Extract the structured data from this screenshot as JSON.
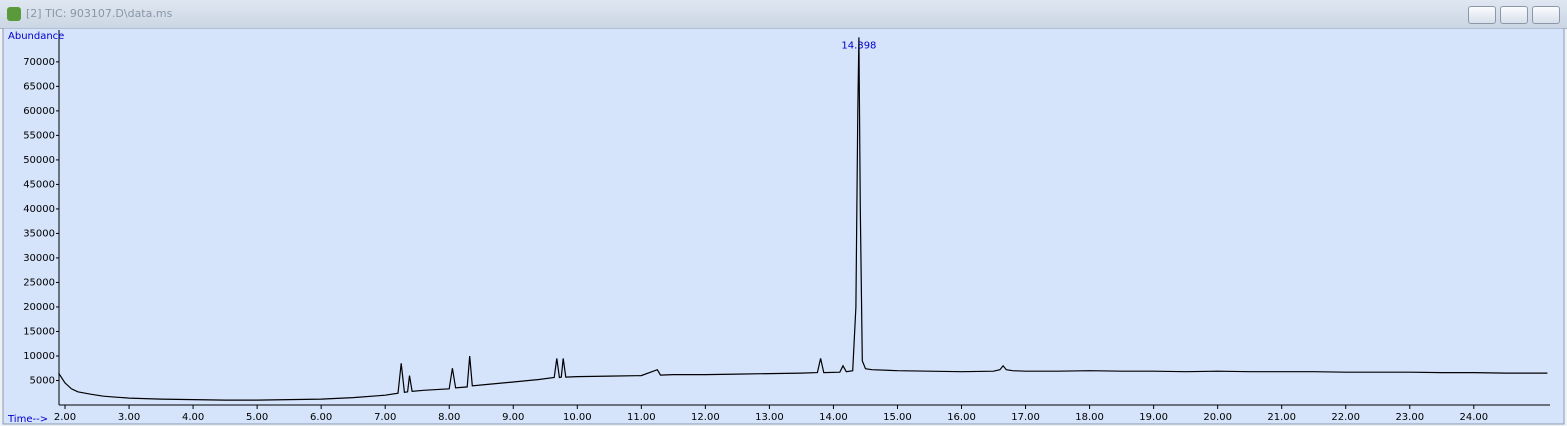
{
  "window": {
    "title": "[2] TIC: 903107.D\\data.ms"
  },
  "chart_data": {
    "type": "line",
    "y_label": "Abundance",
    "x_label": "Time-->",
    "annotation": "14.398",
    "annotation_index": 57,
    "color": "#000000",
    "x": [
      1.9,
      2.0,
      2.1,
      2.2,
      2.4,
      2.6,
      2.8,
      3.0,
      3.5,
      4.0,
      4.5,
      5.0,
      5.5,
      6.0,
      6.5,
      7.0,
      7.2,
      7.25,
      7.3,
      7.35,
      7.38,
      7.42,
      7.6,
      8.0,
      8.05,
      8.1,
      8.28,
      8.32,
      8.36,
      8.6,
      9.0,
      9.4,
      9.64,
      9.68,
      9.72,
      9.75,
      9.78,
      9.82,
      10.0,
      10.5,
      11.0,
      11.25,
      11.3,
      11.5,
      12.0,
      12.5,
      13.0,
      13.5,
      13.75,
      13.8,
      13.85,
      14.1,
      14.15,
      14.2,
      14.3,
      14.35,
      14.38,
      14.398,
      14.42,
      14.45,
      14.5,
      14.6,
      15.0,
      15.5,
      16.0,
      16.5,
      16.6,
      16.65,
      16.7,
      16.8,
      17.0,
      17.5,
      18.0,
      18.5,
      19.0,
      19.5,
      20.0,
      20.5,
      21.0,
      21.5,
      22.0,
      22.5,
      23.0,
      23.5,
      24.0,
      24.5,
      25.0,
      25.15
    ],
    "values": [
      6500,
      4500,
      3300,
      2700,
      2200,
      1800,
      1600,
      1400,
      1200,
      1100,
      1000,
      1000,
      1100,
      1200,
      1500,
      2000,
      2400,
      8500,
      2600,
      2700,
      6000,
      2800,
      3000,
      3300,
      7500,
      3500,
      3700,
      10000,
      3900,
      4200,
      4700,
      5200,
      5600,
      9500,
      5600,
      5700,
      9500,
      5700,
      5800,
      5900,
      6000,
      7200,
      6100,
      6200,
      6200,
      6300,
      6400,
      6500,
      6600,
      9500,
      6600,
      6700,
      8000,
      6800,
      7000,
      20000,
      60000,
      75000,
      40000,
      9000,
      7400,
      7200,
      7000,
      6900,
      6800,
      6900,
      7200,
      8000,
      7200,
      7000,
      6900,
      6900,
      7000,
      6900,
      6900,
      6800,
      6900,
      6800,
      6800,
      6800,
      6700,
      6700,
      6700,
      6600,
      6600,
      6500,
      6500,
      6500
    ],
    "xlim": [
      1.906,
      25.19
    ],
    "ylim": [
      0,
      76500
    ],
    "xticks": [
      {
        "value": 2,
        "label": "2.00"
      },
      {
        "value": 3,
        "label": "3.00"
      },
      {
        "value": 4,
        "label": "4.00"
      },
      {
        "value": 5,
        "label": "5.00"
      },
      {
        "value": 6,
        "label": "6.00"
      },
      {
        "value": 7,
        "label": "7.00"
      },
      {
        "value": 8,
        "label": "8.00"
      },
      {
        "value": 9,
        "label": "9.00"
      },
      {
        "value": 10,
        "label": "10.00"
      },
      {
        "value": 11,
        "label": "11.00"
      },
      {
        "value": 12,
        "label": "12.00"
      },
      {
        "value": 13,
        "label": "13.00"
      },
      {
        "value": 14,
        "label": "14.00"
      },
      {
        "value": 15,
        "label": "15.00"
      },
      {
        "value": 16,
        "label": "16.00"
      },
      {
        "value": 17,
        "label": "17.00"
      },
      {
        "value": 18,
        "label": "18.00"
      },
      {
        "value": 19,
        "label": "19.00"
      },
      {
        "value": 20,
        "label": "20.00"
      },
      {
        "value": 21,
        "label": "21.00"
      },
      {
        "value": 22,
        "label": "22.00"
      },
      {
        "value": 23,
        "label": "23.00"
      },
      {
        "value": 24,
        "label": "24.00"
      }
    ],
    "yticks": [
      5000,
      10000,
      15000,
      20000,
      25000,
      30000,
      35000,
      40000,
      45000,
      50000,
      55000,
      60000,
      65000,
      70000
    ]
  }
}
